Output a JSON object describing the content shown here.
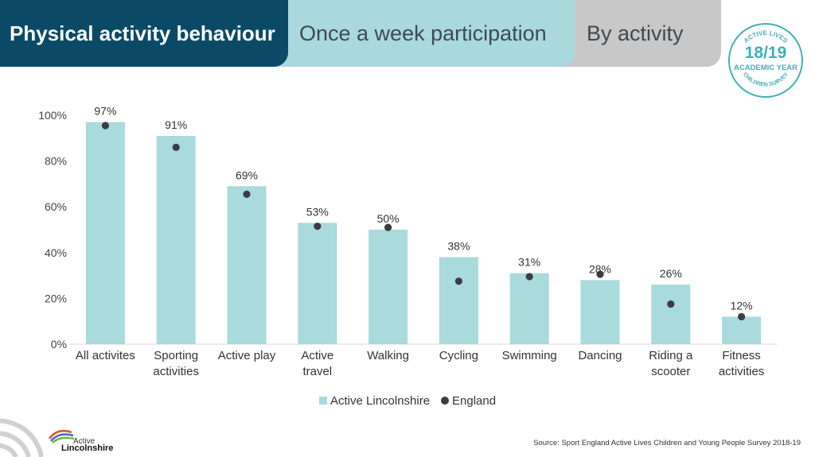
{
  "header": {
    "tab1": "Physical activity behaviour",
    "tab2": "Once a week participation",
    "tab3": "By activity"
  },
  "badge": {
    "top_text": "ACTIVE LIVES",
    "year": "18/19",
    "middle": "ACADEMIC YEAR",
    "bottom_text": "CHILDREN SURVEY"
  },
  "logo": {
    "line1": "Active",
    "line2": "Lincolnshire"
  },
  "source": "Source: Sport England Active Lives Children and Young People Survey 2018-19",
  "colors": {
    "bar": "#a9dadc",
    "dot": "#3c3c42",
    "tab_dark": "#0b4a66",
    "tab_mid": "#a9d9dc",
    "tab_grey": "#c8c8c8"
  },
  "chart_data": {
    "type": "bar",
    "categories": [
      [
        "All activites"
      ],
      [
        "Sporting",
        "activities"
      ],
      [
        "Active play"
      ],
      [
        "Active",
        "travel"
      ],
      [
        "Walking"
      ],
      [
        "Cycling"
      ],
      [
        "Swimming"
      ],
      [
        "Dancing"
      ],
      [
        "Riding a",
        "scooter"
      ],
      [
        "Fitness",
        "activities"
      ]
    ],
    "series": [
      {
        "name": "Active Lincolnshire",
        "kind": "bar",
        "values": [
          97,
          91,
          69,
          53,
          50,
          38,
          31,
          28,
          26,
          12
        ],
        "labels": [
          "97%",
          "91%",
          "69%",
          "53%",
          "50%",
          "38%",
          "31%",
          "28%",
          "26%",
          "12%"
        ]
      },
      {
        "name": "England",
        "kind": "dot",
        "values": [
          95.5,
          86,
          65.5,
          51.5,
          51,
          27.5,
          29.5,
          30.5,
          17.5,
          12
        ]
      }
    ],
    "ylim": [
      0,
      100
    ],
    "yticks": [
      "0%",
      "20%",
      "40%",
      "60%",
      "80%",
      "100%"
    ],
    "grid": false,
    "legend": "bottom-center"
  }
}
